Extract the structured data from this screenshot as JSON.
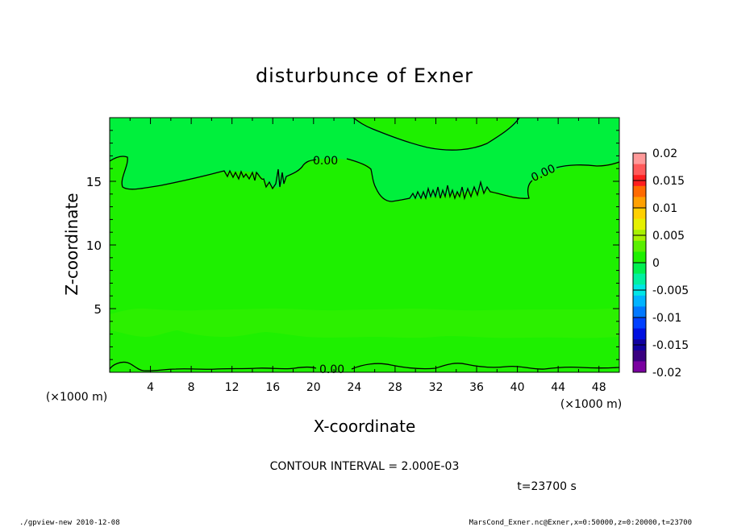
{
  "chart_data": {
    "type": "heatmap",
    "title": "disturbunce of Exner",
    "xlabel": "X-coordinate",
    "ylabel": "Z-coordinate",
    "x_unit": "(×1000 m)",
    "y_unit": "(×1000 m)",
    "xlim": [
      0,
      50
    ],
    "ylim": [
      0,
      20
    ],
    "x_ticks": [
      "4",
      "8",
      "12",
      "16",
      "20",
      "24",
      "28",
      "32",
      "36",
      "40",
      "44",
      "48"
    ],
    "y_ticks": [
      "5",
      "10",
      "15"
    ],
    "colorbar": {
      "labels": [
        "0.02",
        "0.015",
        "0.01",
        "0.005",
        "0",
        "-0.005",
        "-0.01",
        "-0.015",
        "-0.02"
      ],
      "colors": [
        "#ff9a9a",
        "#ff5a5a",
        "#ff1e1e",
        "#ff6a00",
        "#ffa000",
        "#ffd000",
        "#e6f000",
        "#a8f000",
        "#5aef00",
        "#1ef000",
        "#00f050",
        "#00f0a0",
        "#00e6e6",
        "#00b4ff",
        "#0078ff",
        "#0040ff",
        "#0010e0",
        "#1000a0",
        "#3a0080",
        "#7a00a0"
      ]
    },
    "contour_label": "0.00",
    "contour_interval_text": "CONTOUR INTERVAL = 2.000E-03",
    "time_text": "t=23700 s"
  },
  "footer": {
    "left": "./gpview-new  2010-12-08",
    "right": "MarsCond_Exner.nc@Exner,x=0:50000,z=0:20000,t=23700"
  }
}
